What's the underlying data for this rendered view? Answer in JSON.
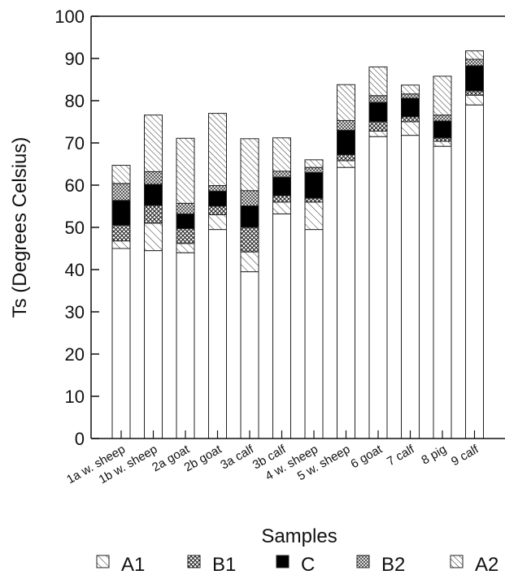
{
  "chart_data": {
    "type": "bar",
    "stacked": true,
    "xlabel": "Samples",
    "ylabel": "Ts (Degrees Celsius)",
    "ylim": [
      0,
      100
    ],
    "yticks": [
      0,
      10,
      20,
      30,
      40,
      50,
      60,
      70,
      80,
      90,
      100
    ],
    "grid": false,
    "legend_position": "bottom",
    "categories": [
      "1a w. sheep",
      "1b w. sheep",
      "2a goat",
      "2b goat",
      "3a calf",
      "3b calf",
      "4 w. sheep",
      "5 w. sheep",
      "6 goat",
      "7 calf",
      "8 pig",
      "9 calf"
    ],
    "base_values": [
      45,
      44.5,
      44,
      49.5,
      39.5,
      53.2,
      49.5,
      64.2,
      71.5,
      71.8,
      69.2,
      79
    ],
    "series": [
      {
        "name": "A1",
        "pattern": "diag-light",
        "values": [
          1.8,
          6.5,
          2.2,
          3.5,
          4.7,
          2.8,
          6.5,
          1.6,
          1.3,
          3.2,
          1.2,
          2.3
        ]
      },
      {
        "name": "B1",
        "pattern": "cross",
        "values": [
          3.7,
          4.2,
          3.5,
          2.0,
          5.8,
          1.5,
          0.9,
          1.4,
          2.2,
          1.2,
          0.8,
          1.0
        ]
      },
      {
        "name": "C",
        "pattern": "solid",
        "values": [
          5.9,
          5.0,
          3.5,
          3.6,
          5.1,
          4.4,
          6.1,
          5.8,
          4.6,
          4.4,
          4.0,
          6.0
        ]
      },
      {
        "name": "B2",
        "pattern": "cross-fine",
        "values": [
          4.0,
          3.0,
          2.5,
          1.3,
          3.6,
          1.4,
          1.2,
          2.3,
          1.6,
          1.0,
          1.4,
          1.5
        ]
      },
      {
        "name": "A2",
        "pattern": "diag-dense",
        "values": [
          4.3,
          13.4,
          15.4,
          17.1,
          12.3,
          7.9,
          1.8,
          8.5,
          6.8,
          2.1,
          9.2,
          2.0
        ]
      }
    ]
  }
}
